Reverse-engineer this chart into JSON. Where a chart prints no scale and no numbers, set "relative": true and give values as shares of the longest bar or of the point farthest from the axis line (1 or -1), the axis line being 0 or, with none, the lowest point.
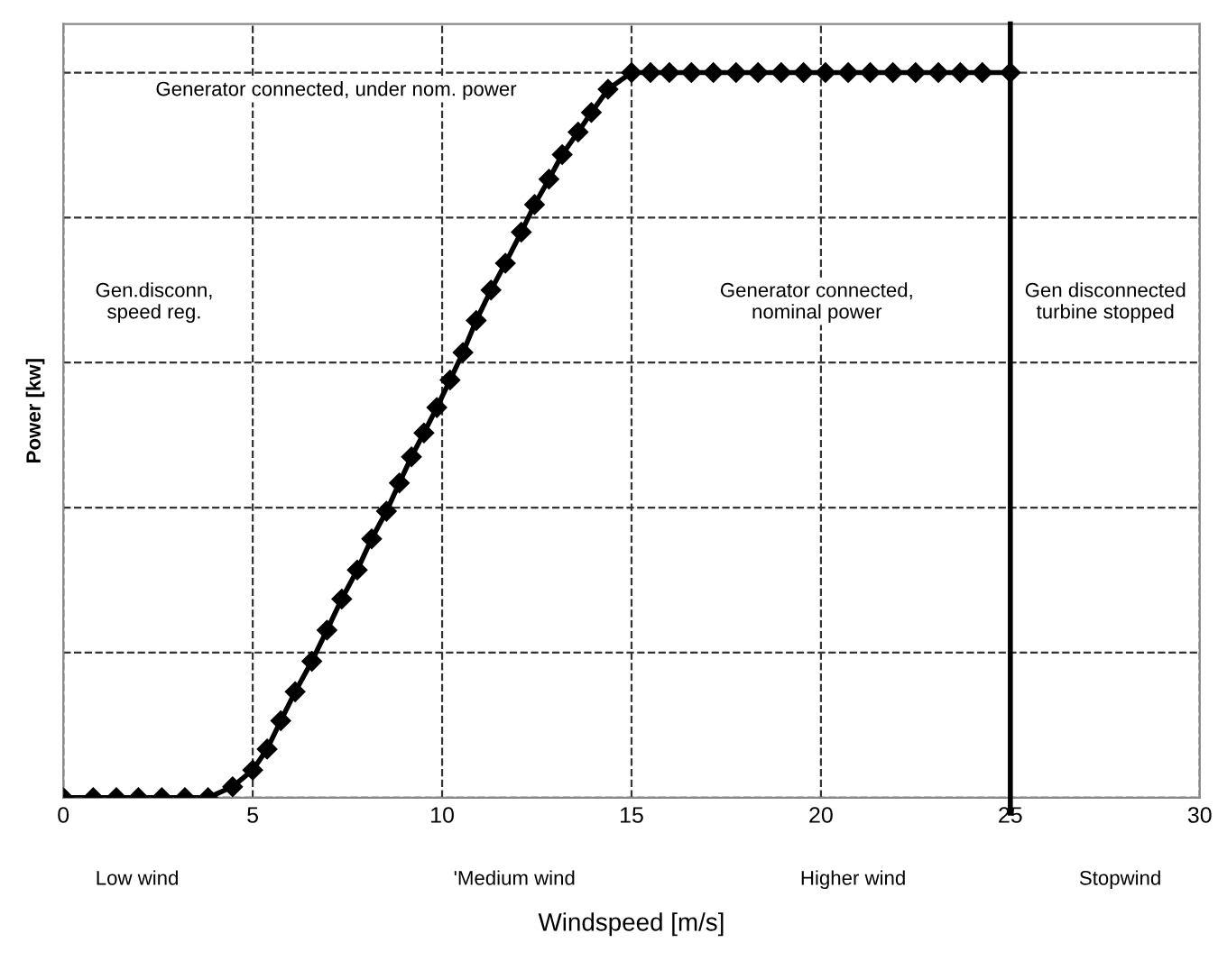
{
  "chart_data": {
    "type": "line",
    "relative": true,
    "xlabel": "Windspeed [m/s]",
    "ylabel": "Power [kw]",
    "xlim": [
      0,
      30
    ],
    "xticks": [
      0,
      5,
      10,
      15,
      20,
      25,
      30
    ],
    "grid": true,
    "marker": "diamond",
    "line_style": "solid",
    "series": [
      {
        "color": "#000000",
        "x": [
          0,
          0.79,
          1.4,
          1.98,
          2.6,
          3.21,
          3.82,
          4.47,
          5.0,
          5.38,
          5.74,
          6.12,
          6.56,
          6.96,
          7.35,
          7.76,
          8.14,
          8.53,
          8.87,
          9.19,
          9.52,
          9.86,
          10.21,
          10.55,
          10.9,
          11.29,
          11.67,
          12.09,
          12.44,
          12.82,
          13.17,
          13.59,
          13.94,
          14.38,
          15.0,
          15.5,
          16.0,
          16.58,
          17.16,
          17.76,
          18.34,
          18.95,
          19.54,
          20.12,
          20.72,
          21.3,
          21.9,
          22.5,
          23.1,
          23.68,
          24.26,
          25.0
        ],
        "values": [
          0,
          0,
          0,
          0,
          0,
          0,
          0,
          0.015,
          0.038,
          0.067,
          0.106,
          0.146,
          0.188,
          0.231,
          0.274,
          0.314,
          0.357,
          0.395,
          0.434,
          0.47,
          0.503,
          0.538,
          0.576,
          0.614,
          0.658,
          0.7,
          0.737,
          0.78,
          0.818,
          0.853,
          0.887,
          0.918,
          0.945,
          0.977,
          1,
          1,
          1,
          1,
          1,
          1,
          1,
          1,
          1,
          1,
          1,
          1,
          1,
          1,
          1,
          1,
          1,
          1
        ]
      }
    ],
    "ref_lines": [
      {
        "axis": "x",
        "value": 25,
        "color": "#000000",
        "line_style": "solid"
      }
    ],
    "annotations": [
      "Generator connected, under nom. power",
      "Gen.disconn,\nspeed reg.",
      "Generator connected,\nnominal power",
      "Gen disconnected\nturbine stopped",
      "Low wind",
      "'Medium wind",
      "Higher wind",
      "Stopwind"
    ]
  }
}
